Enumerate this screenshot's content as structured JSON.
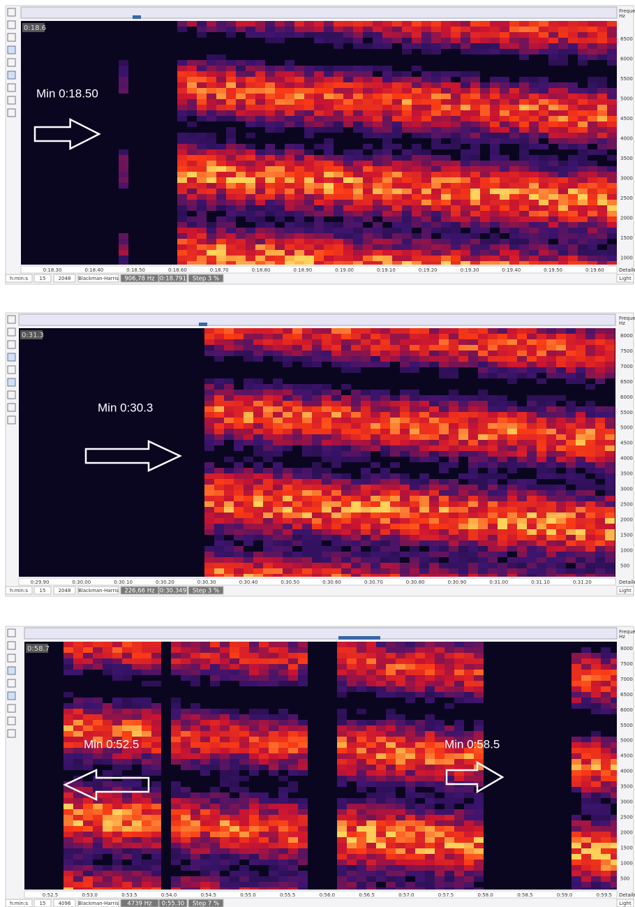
{
  "panels": [
    {
      "position_label": "0:18.6",
      "frequency_header": [
        "Frequency",
        "Hz"
      ],
      "frequency_labels": [
        "6500",
        "6000",
        "5500",
        "5000",
        "4500",
        "4000",
        "3500",
        "3000",
        "2500",
        "2000",
        "1500",
        "1000"
      ],
      "time_labels": [
        "0:18.30",
        "0:18.40",
        "0:18.50",
        "0:18.60",
        "0:18.70",
        "0:18.80",
        "0:18.90",
        "0:19.00",
        "0:19.10",
        "0:19.20",
        "0:19.30",
        "0:19.40",
        "0:19.50",
        "0:19.60"
      ],
      "axis_mode": "Detailed",
      "status": [
        "h:min:s",
        "15",
        "2048",
        "Blackman-Harris",
        "906,78 Hz",
        "0:18.791",
        "Step 3 %"
      ],
      "theme": "Light",
      "annotations": [
        "Min 0:18.50"
      ]
    },
    {
      "position_label": "0:31.3",
      "frequency_header": [
        "Frequency",
        "Hz"
      ],
      "frequency_labels": [
        "8000",
        "7500",
        "7000",
        "6500",
        "6000",
        "5500",
        "5000",
        "4500",
        "4000",
        "3500",
        "3000",
        "2500",
        "2000",
        "1500",
        "1000",
        "500"
      ],
      "time_labels": [
        "0:29.90",
        "0:30.00",
        "0:30.10",
        "0:30.20",
        "0:30.30",
        "0:30.40",
        "0:30.50",
        "0:30.60",
        "0:30.70",
        "0:30.80",
        "0:30.90",
        "0:31.00",
        "0:31.10",
        "0:31.20"
      ],
      "axis_mode": "Detailed",
      "status": [
        "h:min:s",
        "15",
        "2048",
        "Blackman-Harris",
        "226,66 Hz",
        "0:30.349",
        "Step 3 %"
      ],
      "theme": "Light",
      "annotations": [
        "Min 0:30.3"
      ]
    },
    {
      "position_label": "0:58.7",
      "frequency_header": [
        "Frequency",
        "Hz"
      ],
      "frequency_labels": [
        "8000",
        "7500",
        "7000",
        "6500",
        "6000",
        "5500",
        "5000",
        "4500",
        "4000",
        "3500",
        "3000",
        "2500",
        "2000",
        "1500",
        "1000",
        "500"
      ],
      "time_labels": [
        "0:52.5",
        "0:53.0",
        "0:53.5",
        "0:54.0",
        "0:54.5",
        "0:55.0",
        "0:55.5",
        "0:56.0",
        "0:56.5",
        "0:57.0",
        "0:57.5",
        "0:58.0",
        "0:58.5",
        "0:59.0",
        "0:59.5"
      ],
      "axis_mode": "Detailed",
      "status": [
        "h:min:s",
        "15",
        "4096",
        "Blackman-Harris",
        "4739 Hz",
        "0:55.30",
        "Step 7 %"
      ],
      "theme": "Light",
      "annotations": [
        "Min 0:52.5",
        "Min 0:58.5"
      ]
    }
  ]
}
